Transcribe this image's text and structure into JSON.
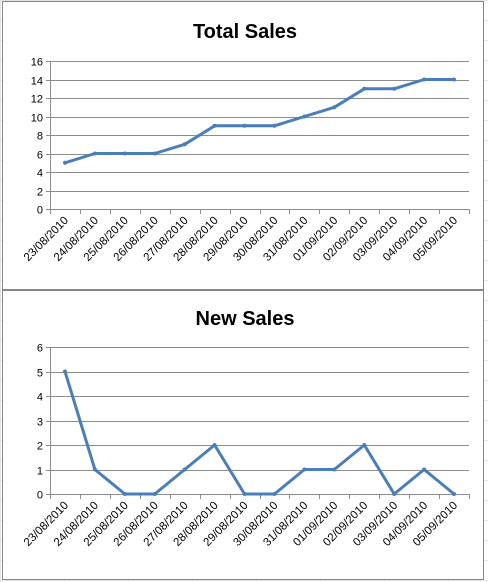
{
  "line_color": "#4a7ebb",
  "chart_data": [
    {
      "type": "line",
      "title": "Total Sales",
      "xlabel": "",
      "ylabel": "",
      "categories": [
        "23/08/2010",
        "24/08/2010",
        "25/08/2010",
        "26/08/2010",
        "27/08/2010",
        "28/08/2010",
        "29/08/2010",
        "30/08/2010",
        "31/08/2010",
        "01/09/2010",
        "02/09/2010",
        "03/09/2010",
        "04/09/2010",
        "05/09/2010"
      ],
      "values": [
        5,
        6,
        6,
        6,
        7,
        9,
        9,
        9,
        10,
        11,
        13,
        13,
        14,
        14
      ],
      "ylim": [
        0,
        16
      ],
      "yticks": [
        0,
        2,
        4,
        6,
        8,
        10,
        12,
        14,
        16
      ],
      "grid": true,
      "legend": "none"
    },
    {
      "type": "line",
      "title": "New Sales",
      "xlabel": "",
      "ylabel": "",
      "categories": [
        "23/08/2010",
        "24/08/2010",
        "25/08/2010",
        "26/08/2010",
        "27/08/2010",
        "28/08/2010",
        "29/08/2010",
        "30/08/2010",
        "31/08/2010",
        "01/09/2010",
        "02/09/2010",
        "03/09/2010",
        "04/09/2010",
        "05/09/2010"
      ],
      "values": [
        5,
        1,
        0,
        0,
        1,
        2,
        0,
        0,
        1,
        1,
        2,
        0,
        1,
        0
      ],
      "ylim": [
        0,
        6
      ],
      "yticks": [
        0,
        1,
        2,
        3,
        4,
        5,
        6
      ],
      "grid": true,
      "legend": "none"
    }
  ]
}
